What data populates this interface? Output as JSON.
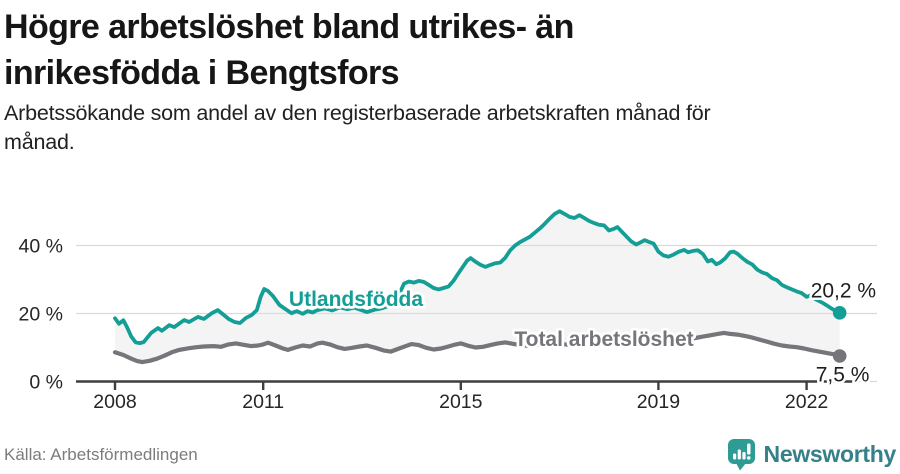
{
  "header": {
    "title_line1": "Högre arbetslöshet bland utrikes- än",
    "title_line2": "inrikesfödda i Bengtsfors",
    "subtitle_line1": "Arbetssökande som andel av den registerbaserade arbetskraften månad för",
    "subtitle_line2": "månad."
  },
  "footer": {
    "source": "Källa: Arbetsförmedlingen",
    "brand": "Newsworthy"
  },
  "colors": {
    "accent_teal": "#149e96",
    "series_gray": "#75757a",
    "fill_area": "#f4f4f4",
    "gridline": "#dbdbdb",
    "axis": "#3e3e3e",
    "tick_label": "#262626",
    "end_label": "#1e1e1e",
    "logo_teal": "#2e9b95",
    "logo_text": "#35808a"
  },
  "chart_data": {
    "type": "line",
    "title": "Högre arbetslöshet bland utrikes- än inrikesfödda i Bengtsfors",
    "subtitle": "Arbetssökande som andel av den registerbaserade arbetskraften månad för månad.",
    "unit": "%",
    "xlabel": "",
    "ylabel": "",
    "x_ticks": [
      2008,
      2011,
      2015,
      2019,
      2022
    ],
    "y_ticks": [
      {
        "value": 0,
        "label": "0 %"
      },
      {
        "value": 20,
        "label": "20 %"
      },
      {
        "value": 40,
        "label": "40 %"
      }
    ],
    "xlim": [
      2008,
      2022.7
    ],
    "ylim": [
      0,
      55
    ],
    "grid": "horizontal",
    "legend": "inline-labels",
    "fill_between_series": true,
    "series": [
      {
        "name": "Utlandsfödda",
        "color": "#149e96",
        "end_value": 20.2,
        "end_label": "20,2 %",
        "points": [
          [
            2008.0,
            18.6
          ],
          [
            2008.08,
            17.0
          ],
          [
            2008.17,
            18.0
          ],
          [
            2008.25,
            15.8
          ],
          [
            2008.33,
            13.2
          ],
          [
            2008.42,
            11.5
          ],
          [
            2008.5,
            11.3
          ],
          [
            2008.58,
            11.6
          ],
          [
            2008.73,
            14.3
          ],
          [
            2008.87,
            15.7
          ],
          [
            2008.95,
            14.9
          ],
          [
            2009.1,
            16.6
          ],
          [
            2009.2,
            16.0
          ],
          [
            2009.4,
            18.1
          ],
          [
            2009.5,
            17.5
          ],
          [
            2009.68,
            19.0
          ],
          [
            2009.8,
            18.4
          ],
          [
            2009.96,
            20.1
          ],
          [
            2010.08,
            21.0
          ],
          [
            2010.2,
            19.6
          ],
          [
            2010.3,
            18.4
          ],
          [
            2010.42,
            17.5
          ],
          [
            2010.53,
            17.2
          ],
          [
            2010.65,
            18.7
          ],
          [
            2010.77,
            19.6
          ],
          [
            2010.87,
            21.0
          ],
          [
            2010.95,
            24.9
          ],
          [
            2011.02,
            27.2
          ],
          [
            2011.1,
            26.6
          ],
          [
            2011.2,
            25.1
          ],
          [
            2011.33,
            22.5
          ],
          [
            2011.48,
            21.0
          ],
          [
            2011.57,
            20.1
          ],
          [
            2011.68,
            20.7
          ],
          [
            2011.8,
            19.9
          ],
          [
            2011.9,
            20.7
          ],
          [
            2012.0,
            20.3
          ],
          [
            2012.1,
            21.0
          ],
          [
            2012.25,
            21.5
          ],
          [
            2012.4,
            20.9
          ],
          [
            2012.55,
            21.8
          ],
          [
            2012.7,
            21.3
          ],
          [
            2012.85,
            21.7
          ],
          [
            2012.95,
            21.2
          ],
          [
            2013.1,
            20.4
          ],
          [
            2013.25,
            21.1
          ],
          [
            2013.4,
            21.5
          ],
          [
            2013.55,
            22.3
          ],
          [
            2013.65,
            23.8
          ],
          [
            2013.77,
            26.2
          ],
          [
            2013.85,
            28.8
          ],
          [
            2013.95,
            29.4
          ],
          [
            2014.05,
            29.1
          ],
          [
            2014.15,
            29.6
          ],
          [
            2014.25,
            29.3
          ],
          [
            2014.35,
            28.4
          ],
          [
            2014.45,
            27.5
          ],
          [
            2014.55,
            27.1
          ],
          [
            2014.65,
            27.5
          ],
          [
            2014.75,
            27.9
          ],
          [
            2014.85,
            29.6
          ],
          [
            2014.95,
            31.8
          ],
          [
            2015.05,
            33.9
          ],
          [
            2015.13,
            35.6
          ],
          [
            2015.2,
            36.3
          ],
          [
            2015.3,
            35.2
          ],
          [
            2015.4,
            34.3
          ],
          [
            2015.5,
            33.7
          ],
          [
            2015.6,
            34.3
          ],
          [
            2015.7,
            34.8
          ],
          [
            2015.8,
            35.0
          ],
          [
            2015.9,
            36.4
          ],
          [
            2016.0,
            38.6
          ],
          [
            2016.1,
            40.0
          ],
          [
            2016.2,
            41.0
          ],
          [
            2016.3,
            41.8
          ],
          [
            2016.4,
            42.6
          ],
          [
            2016.5,
            43.8
          ],
          [
            2016.6,
            45.0
          ],
          [
            2016.7,
            46.4
          ],
          [
            2016.8,
            47.9
          ],
          [
            2016.9,
            49.3
          ],
          [
            2017.0,
            50.1
          ],
          [
            2017.1,
            49.3
          ],
          [
            2017.2,
            48.4
          ],
          [
            2017.3,
            48.1
          ],
          [
            2017.4,
            48.9
          ],
          [
            2017.5,
            48.1
          ],
          [
            2017.6,
            47.2
          ],
          [
            2017.7,
            46.6
          ],
          [
            2017.8,
            46.1
          ],
          [
            2017.9,
            45.9
          ],
          [
            2018.0,
            44.4
          ],
          [
            2018.1,
            44.9
          ],
          [
            2018.17,
            45.4
          ],
          [
            2018.25,
            44.2
          ],
          [
            2018.35,
            42.7
          ],
          [
            2018.45,
            41.2
          ],
          [
            2018.55,
            40.3
          ],
          [
            2018.65,
            41.0
          ],
          [
            2018.72,
            41.6
          ],
          [
            2018.8,
            41.1
          ],
          [
            2018.9,
            40.6
          ],
          [
            2019.0,
            38.2
          ],
          [
            2019.1,
            37.1
          ],
          [
            2019.2,
            36.7
          ],
          [
            2019.3,
            37.3
          ],
          [
            2019.42,
            38.2
          ],
          [
            2019.52,
            38.7
          ],
          [
            2019.6,
            38.0
          ],
          [
            2019.7,
            38.4
          ],
          [
            2019.8,
            38.6
          ],
          [
            2019.9,
            37.5
          ],
          [
            2020.0,
            35.3
          ],
          [
            2020.08,
            35.8
          ],
          [
            2020.17,
            34.5
          ],
          [
            2020.25,
            35.0
          ],
          [
            2020.35,
            36.2
          ],
          [
            2020.45,
            38.0
          ],
          [
            2020.52,
            38.2
          ],
          [
            2020.6,
            37.6
          ],
          [
            2020.7,
            36.3
          ],
          [
            2020.8,
            35.2
          ],
          [
            2020.9,
            34.4
          ],
          [
            2021.0,
            32.9
          ],
          [
            2021.1,
            32.1
          ],
          [
            2021.2,
            31.6
          ],
          [
            2021.3,
            30.4
          ],
          [
            2021.4,
            29.8
          ],
          [
            2021.5,
            28.4
          ],
          [
            2021.6,
            27.7
          ],
          [
            2021.7,
            27.1
          ],
          [
            2021.8,
            26.5
          ],
          [
            2021.9,
            26.0
          ],
          [
            2022.0,
            24.9
          ],
          [
            2022.08,
            25.3
          ],
          [
            2022.17,
            24.3
          ],
          [
            2022.25,
            23.7
          ],
          [
            2022.33,
            23.1
          ],
          [
            2022.42,
            22.3
          ],
          [
            2022.5,
            21.5
          ],
          [
            2022.58,
            20.8
          ],
          [
            2022.67,
            20.2
          ]
        ]
      },
      {
        "name": "Total arbetslöshet",
        "color": "#75757a",
        "end_value": 7.5,
        "end_label": "7,5 %",
        "points": [
          [
            2008.0,
            8.6
          ],
          [
            2008.17,
            7.8
          ],
          [
            2008.33,
            6.7
          ],
          [
            2008.45,
            6.0
          ],
          [
            2008.55,
            5.7
          ],
          [
            2008.7,
            6.1
          ],
          [
            2008.85,
            6.7
          ],
          [
            2009.0,
            7.6
          ],
          [
            2009.15,
            8.6
          ],
          [
            2009.3,
            9.3
          ],
          [
            2009.5,
            9.8
          ],
          [
            2009.65,
            10.1
          ],
          [
            2009.8,
            10.3
          ],
          [
            2010.0,
            10.4
          ],
          [
            2010.15,
            10.2
          ],
          [
            2010.3,
            10.9
          ],
          [
            2010.45,
            11.2
          ],
          [
            2010.6,
            10.8
          ],
          [
            2010.75,
            10.4
          ],
          [
            2010.9,
            10.6
          ],
          [
            2011.0,
            10.9
          ],
          [
            2011.1,
            11.4
          ],
          [
            2011.25,
            10.6
          ],
          [
            2011.4,
            9.7
          ],
          [
            2011.5,
            9.3
          ],
          [
            2011.65,
            10.0
          ],
          [
            2011.8,
            10.6
          ],
          [
            2011.95,
            10.3
          ],
          [
            2012.1,
            11.2
          ],
          [
            2012.2,
            11.4
          ],
          [
            2012.35,
            10.9
          ],
          [
            2012.5,
            10.1
          ],
          [
            2012.65,
            9.6
          ],
          [
            2012.8,
            9.9
          ],
          [
            2012.95,
            10.3
          ],
          [
            2013.1,
            10.6
          ],
          [
            2013.3,
            9.8
          ],
          [
            2013.45,
            9.1
          ],
          [
            2013.58,
            8.8
          ],
          [
            2013.75,
            9.7
          ],
          [
            2013.9,
            10.5
          ],
          [
            2014.0,
            11.0
          ],
          [
            2014.15,
            10.7
          ],
          [
            2014.3,
            9.9
          ],
          [
            2014.45,
            9.4
          ],
          [
            2014.6,
            9.7
          ],
          [
            2014.75,
            10.3
          ],
          [
            2014.9,
            10.9
          ],
          [
            2015.0,
            11.2
          ],
          [
            2015.15,
            10.5
          ],
          [
            2015.3,
            10.0
          ],
          [
            2015.45,
            10.2
          ],
          [
            2015.6,
            10.7
          ],
          [
            2015.75,
            11.2
          ],
          [
            2015.9,
            11.5
          ],
          [
            2016.05,
            11.1
          ],
          [
            2016.2,
            10.7
          ],
          [
            2016.35,
            10.5
          ],
          [
            2016.5,
            10.7
          ],
          [
            2016.65,
            10.9
          ],
          [
            2016.8,
            11.2
          ],
          [
            2017.0,
            11.0
          ],
          [
            2017.25,
            10.8
          ],
          [
            2017.5,
            11.1
          ],
          [
            2017.75,
            11.4
          ],
          [
            2018.0,
            11.2
          ],
          [
            2018.25,
            11.5
          ],
          [
            2018.5,
            11.7
          ],
          [
            2018.75,
            12.0
          ],
          [
            2019.0,
            12.2
          ],
          [
            2019.25,
            12.4
          ],
          [
            2019.5,
            12.3
          ],
          [
            2019.75,
            12.8
          ],
          [
            2019.9,
            13.2
          ],
          [
            2020.05,
            13.6
          ],
          [
            2020.2,
            14.0
          ],
          [
            2020.33,
            14.3
          ],
          [
            2020.45,
            14.0
          ],
          [
            2020.6,
            13.8
          ],
          [
            2020.75,
            13.4
          ],
          [
            2020.9,
            12.9
          ],
          [
            2021.05,
            12.3
          ],
          [
            2021.2,
            11.7
          ],
          [
            2021.35,
            11.1
          ],
          [
            2021.5,
            10.6
          ],
          [
            2021.65,
            10.3
          ],
          [
            2021.8,
            10.1
          ],
          [
            2021.95,
            9.7
          ],
          [
            2022.1,
            9.2
          ],
          [
            2022.25,
            8.8
          ],
          [
            2022.4,
            8.4
          ],
          [
            2022.55,
            8.0
          ],
          [
            2022.67,
            7.5
          ]
        ]
      }
    ]
  }
}
